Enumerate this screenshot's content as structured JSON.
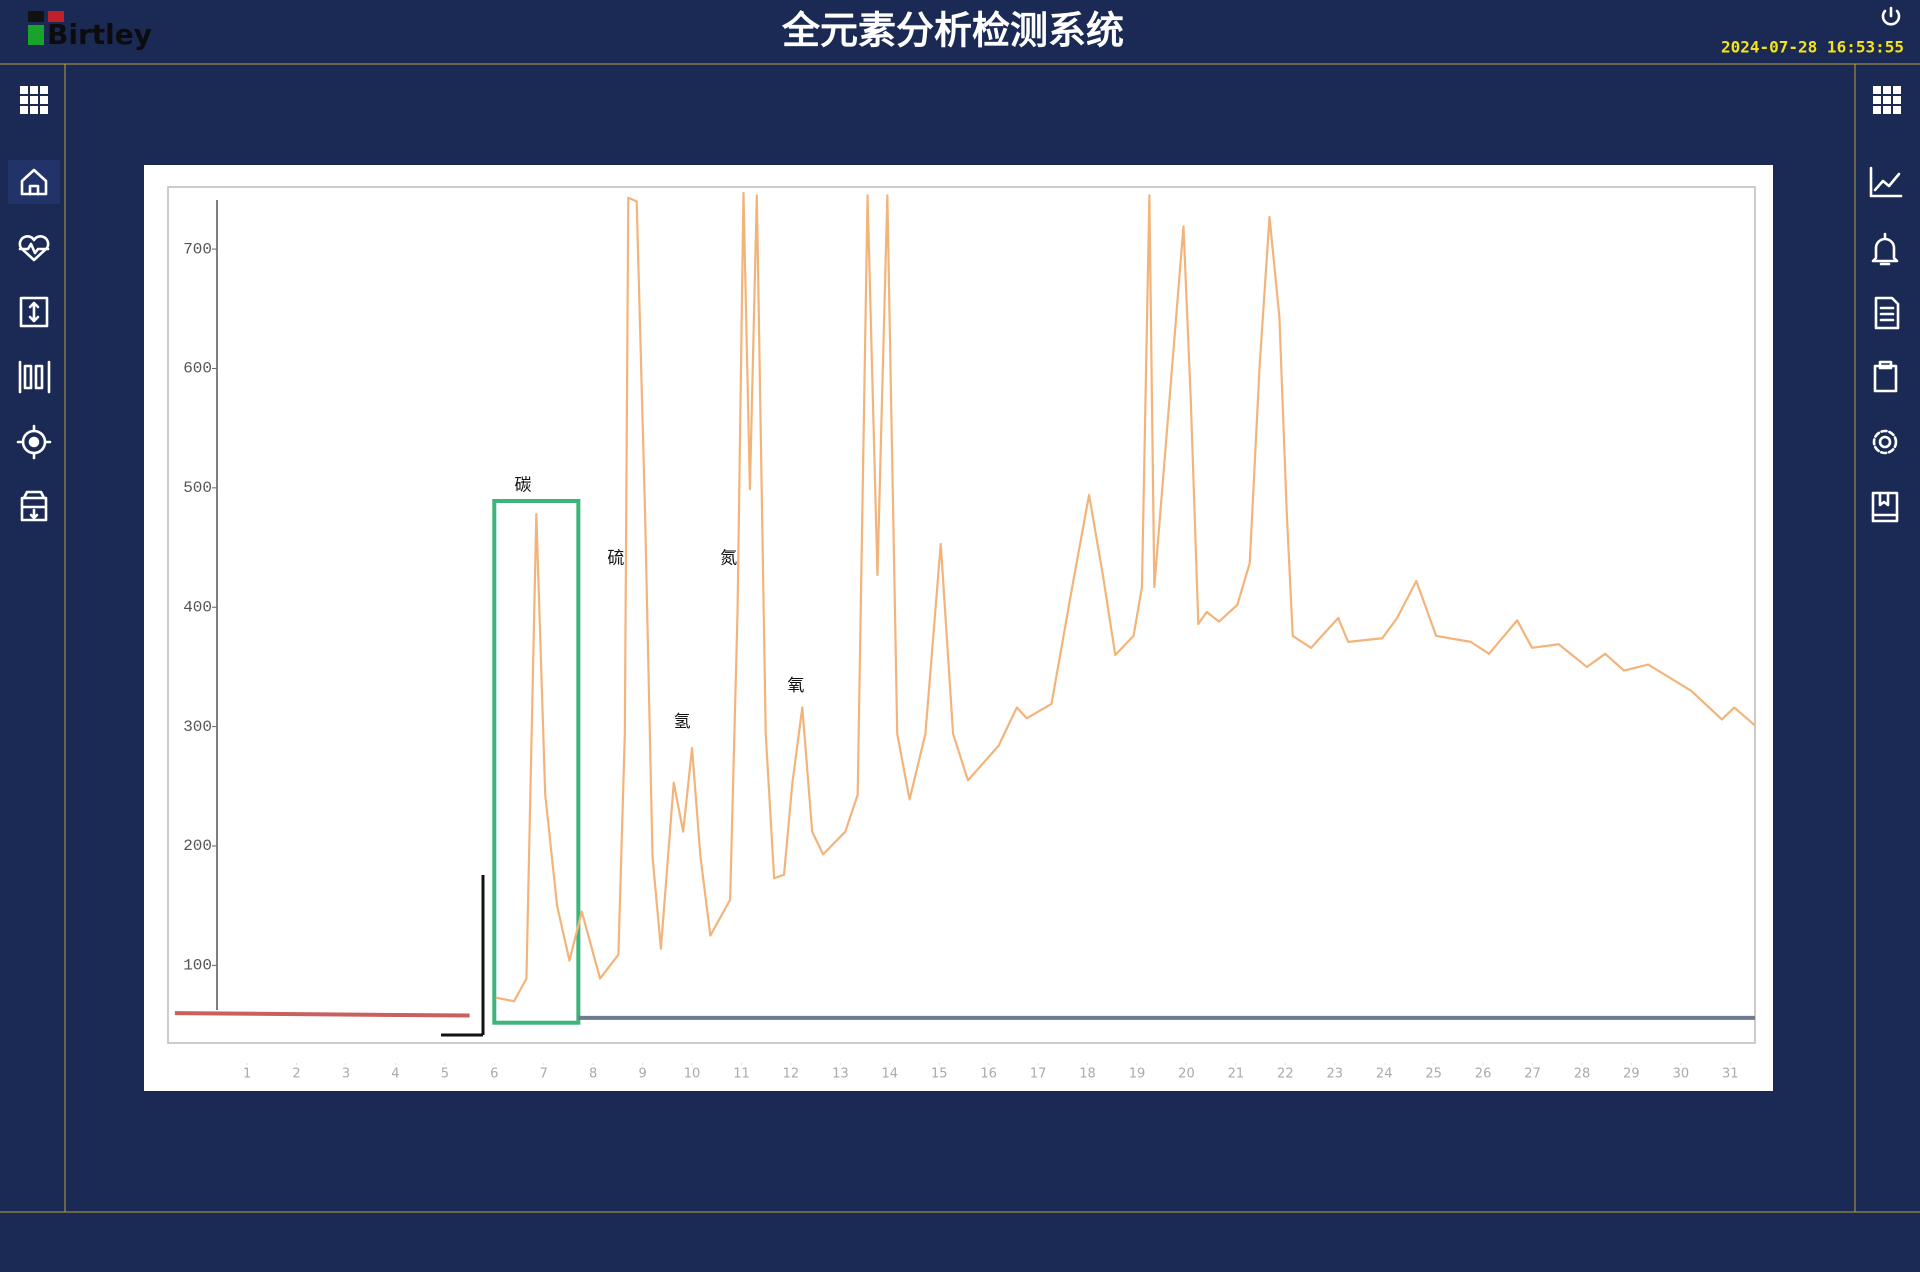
{
  "header": {
    "logo": "Birtley",
    "title": "全元素分析检测系统",
    "datetime": "2024-07-28  16:53:55"
  },
  "chart_data": {
    "type": "line",
    "xlim": [
      -0.6,
      31.5
    ],
    "ylim": [
      35,
      752
    ],
    "xticks": [
      1,
      2,
      3,
      4,
      5,
      6,
      7,
      8,
      9,
      10,
      11,
      12,
      13,
      14,
      15,
      16,
      17,
      18,
      19,
      20,
      21,
      22,
      23,
      24,
      25,
      26,
      27,
      28,
      29,
      30,
      31
    ],
    "yticks": [
      100,
      200,
      300,
      400,
      500,
      600,
      700
    ],
    "series": [
      {
        "color": "#f2b47a",
        "x": [
          6.03,
          6.4,
          6.65,
          6.85,
          7.03,
          7.27,
          7.52,
          7.77,
          8.14,
          8.51,
          8.64,
          8.71,
          8.88,
          9.05,
          9.2,
          9.37,
          9.63,
          9.82,
          10.0,
          10.17,
          10.37,
          10.77,
          10.92,
          11.04,
          11.17,
          11.31,
          11.49,
          11.66,
          11.86,
          12.03,
          12.23,
          12.43,
          12.65,
          13.1,
          13.35,
          13.55,
          13.75,
          13.95,
          14.15,
          14.4,
          14.72,
          15.03,
          15.28,
          15.58,
          16.2,
          16.57,
          16.77,
          17.27,
          17.69,
          18.03,
          18.31,
          18.56,
          18.93,
          19.1,
          19.25,
          19.35,
          19.94,
          20.09,
          20.24,
          20.41,
          20.66,
          21.03,
          21.28,
          21.48,
          21.68,
          21.88,
          22.03,
          22.15,
          22.52,
          23.07,
          23.27,
          23.96,
          24.26,
          24.65,
          25.05,
          25.75,
          26.12,
          26.69,
          26.99,
          27.53,
          28.1,
          28.47,
          28.85,
          29.34,
          30.21,
          30.83,
          31.08,
          31.5
        ],
        "values": [
          73,
          70,
          89,
          478,
          243,
          150,
          104,
          145,
          89,
          109,
          294,
          743,
          740,
          478,
          191,
          114,
          253,
          212,
          282,
          191,
          125,
          155,
          396,
          747,
          499,
          745,
          294,
          173,
          176,
          253,
          316,
          212,
          193,
          212,
          243,
          745,
          427,
          745,
          294,
          239,
          294,
          453,
          294,
          255,
          284,
          316,
          307,
          319,
          417,
          494,
          427,
          360,
          376,
          417,
          745,
          417,
          719,
          571,
          386,
          396,
          388,
          402,
          437,
          602,
          727,
          643,
          478,
          376,
          366,
          391,
          371,
          374,
          391,
          422,
          376,
          371,
          361,
          389,
          366,
          369,
          350,
          361,
          347,
          352,
          330,
          306,
          316,
          301
        ]
      },
      {
        "color": "#c8605e",
        "x": [
          -0.46,
          5.5
        ],
        "values": [
          60,
          58
        ]
      },
      {
        "color": "#6f7a8e",
        "x": [
          7.7,
          31.5
        ],
        "values": [
          56,
          56
        ]
      }
    ],
    "highlight": {
      "xlim": [
        6.0,
        7.7
      ],
      "ylim": [
        52,
        489
      ],
      "color": "#3cb47a"
    },
    "annotations": [
      {
        "text": "碳",
        "x": 6.58,
        "y": 502
      },
      {
        "text": "硫",
        "x": 8.46,
        "y": 441
      },
      {
        "text": "氢",
        "x": 9.8,
        "y": 304
      },
      {
        "text": "氮",
        "x": 10.74,
        "y": 441
      },
      {
        "text": "氧",
        "x": 12.1,
        "y": 334
      }
    ]
  }
}
